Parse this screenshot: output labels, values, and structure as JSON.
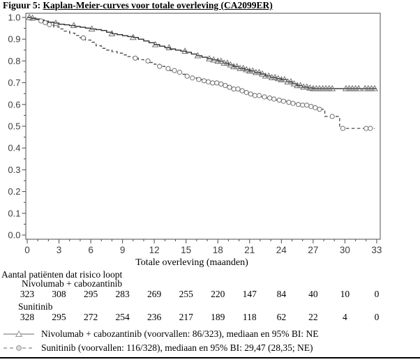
{
  "figure": {
    "title_prefix": "Figuur 5: ",
    "title_underlined": "Kaplan-Meier-curves voor totale overleving (CA2099ER)"
  },
  "chart_data": {
    "type": "line",
    "subtype": "kaplan-meier-step",
    "xlabel": "Totale overleving (maanden)",
    "ylabel": "",
    "xlim": [
      0,
      33
    ],
    "ylim": [
      0.0,
      1.0
    ],
    "x_major_ticks": [
      0,
      3,
      6,
      9,
      12,
      15,
      18,
      21,
      24,
      27,
      30,
      33
    ],
    "x_minor_step": 1,
    "y_major_ticks": [
      0.0,
      0.1,
      0.2,
      0.3,
      0.4,
      0.5,
      0.6,
      0.7,
      0.8,
      0.9,
      1.0
    ],
    "y_minor_step": 0.05,
    "grid": false,
    "legend_position": "bottom-left",
    "series": [
      {
        "name": "Nivolumab + cabozantinib",
        "line_style": "solid",
        "marker": "triangle",
        "steps": [
          [
            0,
            1.0
          ],
          [
            0.4,
            0.997
          ],
          [
            0.8,
            0.993
          ],
          [
            1.2,
            0.988
          ],
          [
            1.6,
            0.983
          ],
          [
            2,
            0.978
          ],
          [
            2.5,
            0.974
          ],
          [
            3,
            0.969
          ],
          [
            3.5,
            0.966
          ],
          [
            4,
            0.963
          ],
          [
            4.5,
            0.959
          ],
          [
            5,
            0.955
          ],
          [
            5.5,
            0.951
          ],
          [
            6,
            0.947
          ],
          [
            6.5,
            0.944
          ],
          [
            7,
            0.94
          ],
          [
            7.5,
            0.932
          ],
          [
            8,
            0.925
          ],
          [
            8.5,
            0.921
          ],
          [
            9,
            0.916
          ],
          [
            9.5,
            0.912
          ],
          [
            10,
            0.908
          ],
          [
            10.5,
            0.9
          ],
          [
            11,
            0.892
          ],
          [
            11.5,
            0.884
          ],
          [
            12,
            0.875
          ],
          [
            12.5,
            0.868
          ],
          [
            13,
            0.861
          ],
          [
            13.5,
            0.855
          ],
          [
            14,
            0.85
          ],
          [
            14.5,
            0.845
          ],
          [
            15,
            0.84
          ],
          [
            15.5,
            0.832
          ],
          [
            16,
            0.824
          ],
          [
            16.5,
            0.817
          ],
          [
            17,
            0.81
          ],
          [
            17.5,
            0.805
          ],
          [
            18,
            0.799
          ],
          [
            18.5,
            0.79
          ],
          [
            19,
            0.782
          ],
          [
            19.5,
            0.774
          ],
          [
            20,
            0.766
          ],
          [
            20.5,
            0.76
          ],
          [
            21,
            0.754
          ],
          [
            21.5,
            0.747
          ],
          [
            22,
            0.74
          ],
          [
            22.5,
            0.731
          ],
          [
            23,
            0.724
          ],
          [
            23.5,
            0.719
          ],
          [
            24,
            0.714
          ],
          [
            24.5,
            0.704
          ],
          [
            25,
            0.695
          ],
          [
            25.5,
            0.687
          ],
          [
            26,
            0.68
          ],
          [
            26.5,
            0.676
          ],
          [
            27,
            0.673
          ],
          [
            33,
            0.673
          ]
        ],
        "censor_marks": [
          0.2,
          0.5,
          2.7,
          4.4,
          6.1,
          8.0,
          10.0,
          12.1,
          13.4,
          14.9,
          16.1,
          17.2,
          17.6,
          18.0,
          18.3,
          18.6,
          18.9,
          19.2,
          19.5,
          19.8,
          20.1,
          20.4,
          20.7,
          21.0,
          21.3,
          21.6,
          21.9,
          22.2,
          22.5,
          22.8,
          23.1,
          23.4,
          23.7,
          24.0,
          24.3,
          24.6,
          24.9,
          25.2,
          25.5,
          25.8,
          26.1,
          26.4,
          26.7,
          27.0,
          27.3,
          27.6,
          27.9,
          28.2,
          28.5,
          28.8,
          30.1,
          30.4,
          30.7,
          31.0,
          31.3,
          31.9,
          32.2,
          32.5,
          32.8
        ]
      },
      {
        "name": "Sunitinib",
        "line_style": "dashed",
        "marker": "circle",
        "steps": [
          [
            0,
            1.0
          ],
          [
            0.4,
            0.995
          ],
          [
            0.8,
            0.99
          ],
          [
            1.2,
            0.984
          ],
          [
            1.6,
            0.976
          ],
          [
            2,
            0.967
          ],
          [
            2.5,
            0.957
          ],
          [
            3,
            0.947
          ],
          [
            3.5,
            0.937
          ],
          [
            4,
            0.928
          ],
          [
            4.5,
            0.917
          ],
          [
            5,
            0.906
          ],
          [
            5.5,
            0.896
          ],
          [
            6,
            0.886
          ],
          [
            6.5,
            0.87
          ],
          [
            7,
            0.858
          ],
          [
            7.5,
            0.85
          ],
          [
            8,
            0.843
          ],
          [
            8.5,
            0.836
          ],
          [
            9,
            0.828
          ],
          [
            9.5,
            0.82
          ],
          [
            10,
            0.813
          ],
          [
            10.5,
            0.806
          ],
          [
            11,
            0.8
          ],
          [
            11.5,
            0.793
          ],
          [
            12,
            0.785
          ],
          [
            12.5,
            0.775
          ],
          [
            13,
            0.765
          ],
          [
            13.5,
            0.756
          ],
          [
            14,
            0.748
          ],
          [
            14.5,
            0.739
          ],
          [
            15,
            0.73
          ],
          [
            15.5,
            0.722
          ],
          [
            16,
            0.715
          ],
          [
            16.5,
            0.709
          ],
          [
            17,
            0.704
          ],
          [
            17.5,
            0.699
          ],
          [
            18,
            0.694
          ],
          [
            18.5,
            0.687
          ],
          [
            19,
            0.679
          ],
          [
            19.5,
            0.671
          ],
          [
            20,
            0.663
          ],
          [
            20.5,
            0.655
          ],
          [
            21,
            0.648
          ],
          [
            21.5,
            0.641
          ],
          [
            22,
            0.635
          ],
          [
            22.5,
            0.63
          ],
          [
            23,
            0.625
          ],
          [
            23.5,
            0.62
          ],
          [
            24,
            0.615
          ],
          [
            24.5,
            0.61
          ],
          [
            25,
            0.605
          ],
          [
            25.5,
            0.6
          ],
          [
            26,
            0.597
          ],
          [
            26.5,
            0.591
          ],
          [
            27,
            0.585
          ],
          [
            27.5,
            0.578
          ],
          [
            28.1,
            0.545
          ],
          [
            29.5,
            0.49
          ],
          [
            32.8,
            0.49
          ]
        ],
        "censor_marks": [
          1.3,
          1.7,
          2.1,
          5.3,
          10.2,
          11.4,
          12.5,
          13.3,
          13.9,
          14.4,
          15.1,
          15.6,
          16.2,
          16.7,
          17.1,
          17.5,
          17.9,
          18.3,
          18.7,
          19.1,
          19.5,
          19.9,
          20.3,
          20.7,
          21.1,
          21.5,
          21.9,
          22.4,
          22.9,
          23.3,
          23.8,
          24.2,
          24.7,
          25.1,
          25.6,
          26.0,
          26.4,
          26.8,
          27.2,
          27.6,
          28.8,
          29.8,
          32.0,
          32.4
        ]
      }
    ]
  },
  "risk_table": {
    "header": "Aantal patiënten dat risico loopt",
    "timepoints": [
      0,
      3,
      6,
      9,
      12,
      15,
      18,
      21,
      24,
      27,
      30,
      33
    ],
    "groups": [
      {
        "label": "Nivolumab + cabozantinib",
        "counts": [
          323,
          308,
          295,
          283,
          269,
          255,
          220,
          147,
          84,
          40,
          10,
          0
        ]
      },
      {
        "label": "Sunitinib",
        "counts": [
          328,
          295,
          272,
          254,
          236,
          217,
          189,
          118,
          62,
          22,
          4,
          0
        ]
      }
    ]
  },
  "legend": {
    "items": [
      {
        "label": "Nivolumab + cabozantinib (voorvallen: 86/323), mediaan en 95% BI: NE",
        "line_style": "solid",
        "marker": "triangle"
      },
      {
        "label": "Sunitinib (voorvallen: 116/328), mediaan en 95% BI: 29,47 (28,35; NE)",
        "line_style": "dashed",
        "marker": "circle"
      }
    ]
  },
  "colors": {
    "curve_solid": "#2e2e2e",
    "curve_dashed": "#4a4a4a",
    "marker_stroke": "#6f6f6f",
    "frame": "#6a6a6a",
    "tick": "#4a4a4a",
    "tick_label": "#3d3d3d",
    "text": "#000000",
    "legend_symbol": "#9b9b9b",
    "bottom_rule": "#000000"
  }
}
